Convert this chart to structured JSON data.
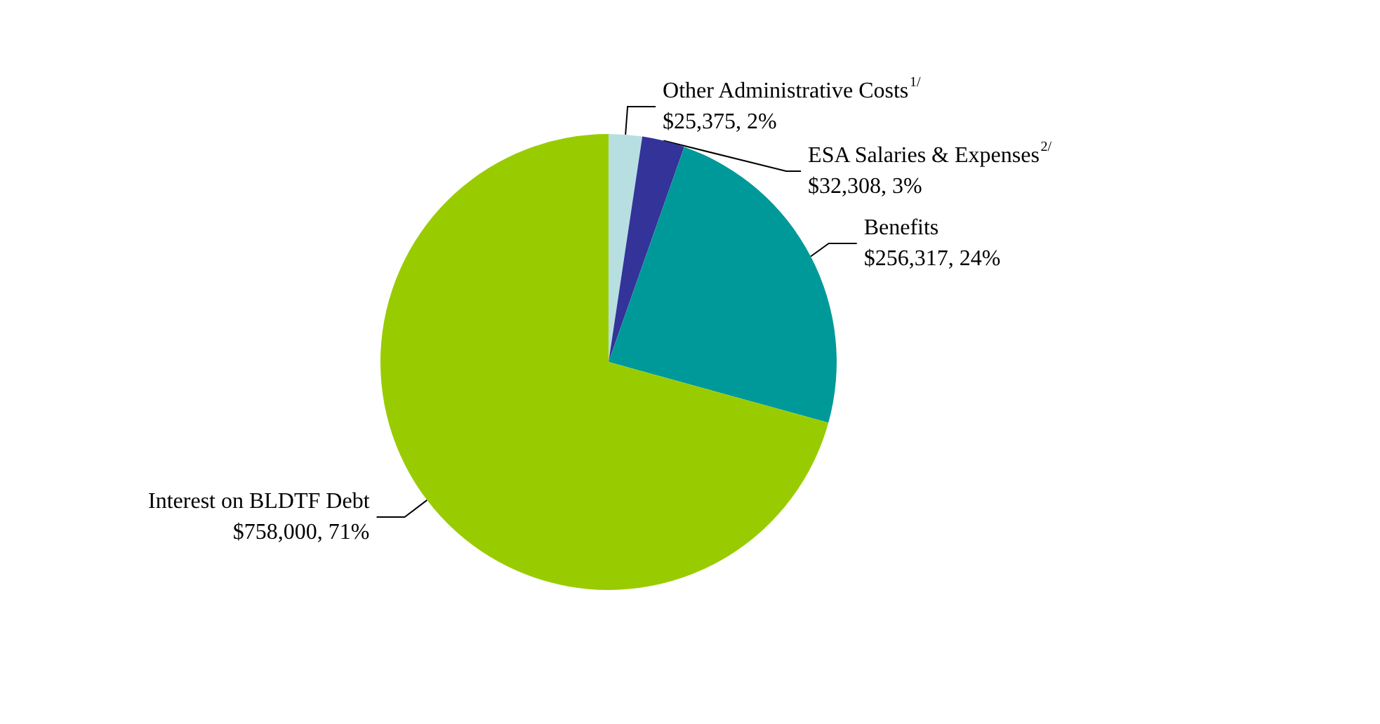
{
  "chart_data": {
    "type": "pie",
    "categories": [
      "Other Administrative Costs$^{1/}$",
      "ESA Salaries & Expenses$^{2/}$",
      "Benefits",
      "Interest on BLDTF Debt"
    ],
    "values": [
      25375,
      32308,
      256317,
      758000
    ],
    "value_labels": [
      "$25,375, 2%",
      "$32,308, 3%",
      "$256,317, 24%",
      "$758,000, 71%"
    ],
    "colors": [
      "#b7dfe2",
      "#333399",
      "#009999",
      "#99cc00"
    ],
    "legend": false
  }
}
